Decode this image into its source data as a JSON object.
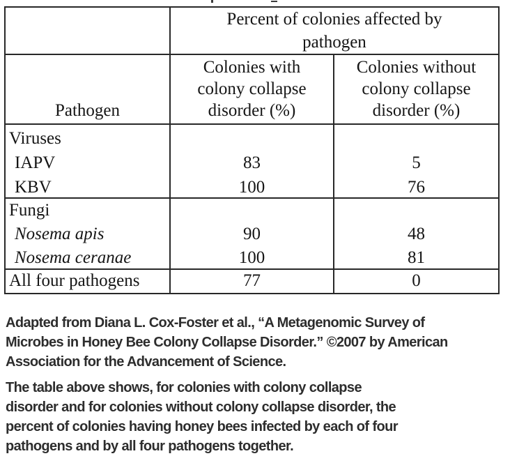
{
  "colors": {
    "background": "#ffffff",
    "table_border": "#282828",
    "table_text": "#151515",
    "caption_text": "#2d2d2d"
  },
  "table": {
    "spanning_header_lines": [
      "Percent of colonies affected by",
      "pathogen"
    ],
    "col1_header": "Pathogen",
    "col2_header_lines": [
      "Colonies with",
      "colony collapse",
      "disorder (%)"
    ],
    "col3_header_lines": [
      "Colonies without",
      "colony collapse",
      "disorder (%)"
    ],
    "sections": [
      {
        "group": "Viruses",
        "rows": [
          {
            "pathogen": "IAPV",
            "with_ccd": "83",
            "without_ccd": "5"
          },
          {
            "pathogen": "KBV",
            "with_ccd": "100",
            "without_ccd": "76"
          }
        ]
      },
      {
        "group": "Fungi",
        "rows": [
          {
            "pathogen": "Nosema apis",
            "with_ccd": "90",
            "without_ccd": "48"
          },
          {
            "pathogen": "Nosema ceranae",
            "with_ccd": "100",
            "without_ccd": "81"
          }
        ]
      }
    ],
    "total_row": {
      "pathogen": "All four pathogens",
      "with_ccd": "77",
      "without_ccd": "0"
    }
  },
  "attribution_lines": [
    "Adapted from Diana L. Cox-Foster et al., “A Metagenomic Survey of",
    "Microbes in Honey Bee Colony Collapse Disorder.” ©2007 by American",
    "Association for the Advancement of Science."
  ],
  "description_lines": [
    "The table above shows, for colonies with colony collapse",
    "disorder and for colonies without colony collapse disorder, the",
    "percent of colonies having honey bees infected by each of four",
    "pathogens and by all four pathogens together."
  ]
}
